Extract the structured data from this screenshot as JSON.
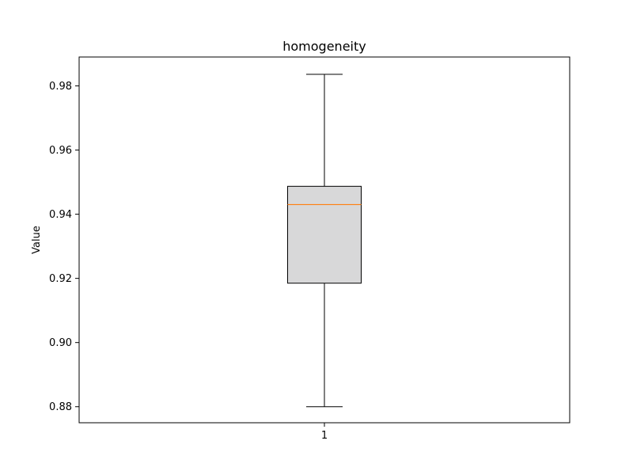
{
  "chart_data": {
    "type": "box",
    "title": "homogeneity",
    "xlabel": "",
    "ylabel": "Value",
    "categories": [
      "1"
    ],
    "boxes": [
      {
        "category": "1",
        "whisker_low": 0.88,
        "q1": 0.9185,
        "median": 0.943,
        "q3": 0.9487,
        "whisker_high": 0.9836
      }
    ],
    "ylim": [
      0.875,
      0.989
    ],
    "yticks": [
      0.88,
      0.9,
      0.92,
      0.94,
      0.96,
      0.98
    ],
    "ytick_labels": [
      "0.88",
      "0.90",
      "0.92",
      "0.94",
      "0.96",
      "0.98"
    ],
    "grid": false,
    "colors": {
      "box_fill": "#d8d8d9",
      "box_edge": "#000000",
      "median": "#ff7f0e",
      "whisker": "#000000"
    }
  }
}
